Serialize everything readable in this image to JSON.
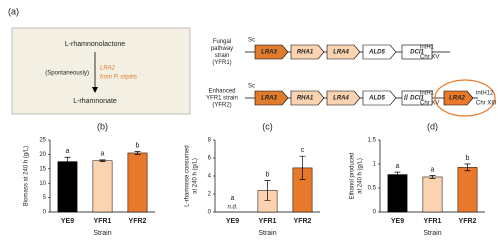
{
  "panel_a": {
    "label": "(a)",
    "box": {
      "substrate": "L-rhamnonolactone",
      "step": "(Spontaneously)",
      "enzyme": "LRA2",
      "enzyme_source": "from P. stipitis",
      "product": "L-rhamnonate"
    },
    "strains": [
      {
        "name_lines": [
          "Fungal",
          "pathway",
          "strain",
          "(YFR1)"
        ],
        "promoter": "Sc",
        "genes": [
          "LRA3",
          "RHA1",
          "LRA4",
          "ALD5",
          "DCI1"
        ],
        "locus": "intH1",
        "chromosome": "Chr XV"
      },
      {
        "name_lines": [
          "Enhanced",
          "YFR1 strain",
          "(YFR2)"
        ],
        "promoter": "Sc",
        "genes": [
          "LRA3",
          "RHA1",
          "LRA4",
          "ALD5",
          "DCI1"
        ],
        "locus": "intH1",
        "chromosome": "Chr XV",
        "extra": {
          "gene": "LRA2",
          "locus": "intH12",
          "chromosome": "Chr XIII"
        }
      }
    ]
  },
  "chart_data": [
    {
      "type": "bar",
      "panel_label": "(b)",
      "ylabel": [
        "Biomass at 240 h (g/L)"
      ],
      "xlabel": "Strain",
      "categories": [
        "YE9",
        "YFR1",
        "YFR2"
      ],
      "values": [
        17.5,
        17.8,
        20.5
      ],
      "errors": [
        1.5,
        0.3,
        0.5
      ],
      "letters": [
        "a",
        "a",
        "b"
      ],
      "colors": [
        "#000000",
        "#fbd3b0",
        "#e8782a"
      ],
      "ylim": [
        0,
        25
      ],
      "yticks": [
        0,
        5,
        10,
        15,
        20,
        25
      ]
    },
    {
      "type": "bar",
      "panel_label": "(c)",
      "ylabel": [
        "L-rhamnose consumed",
        "at 240 h (g/L)"
      ],
      "xlabel": "Strain",
      "categories": [
        "YE9",
        "YFR1",
        "YFR2"
      ],
      "values": [
        0,
        2.4,
        4.9
      ],
      "errors": [
        0,
        1.1,
        1.3
      ],
      "letters": [
        "a",
        "b",
        "c"
      ],
      "note": "n.d.",
      "colors": [
        "#000000",
        "#fbd3b0",
        "#e8782a"
      ],
      "ylim": [
        0,
        8
      ],
      "yticks": [
        0,
        2,
        4,
        6,
        8
      ]
    },
    {
      "type": "bar",
      "panel_label": "(d)",
      "ylabel": [
        "Ethanol produced",
        "at 240 h (g/L)"
      ],
      "xlabel": "Strain",
      "categories": [
        "YE9",
        "YFR1",
        "YFR2"
      ],
      "values": [
        0.78,
        0.73,
        0.93
      ],
      "errors": [
        0.05,
        0.03,
        0.07
      ],
      "letters": [
        "a",
        "a",
        "b"
      ],
      "colors": [
        "#000000",
        "#fbd3b0",
        "#e8782a"
      ],
      "ylim": [
        0,
        1.5
      ],
      "yticks": [
        0,
        0.5,
        1,
        1.5
      ]
    }
  ]
}
